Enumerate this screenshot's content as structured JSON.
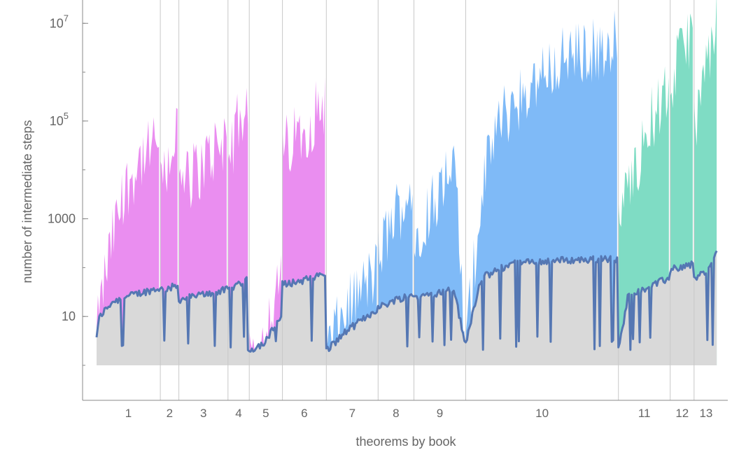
{
  "chart_data": {
    "type": "area",
    "title": "",
    "xlabel": "theorems by book",
    "ylabel": "number of intermediate steps",
    "yscale": "log",
    "ylim": [
      1,
      30000000
    ],
    "y_ticks": [
      {
        "value": 10,
        "label": "10",
        "sup": ""
      },
      {
        "value": 1000,
        "label": "1000",
        "sup": ""
      },
      {
        "value": 100000,
        "label": "10",
        "sup": "5"
      },
      {
        "value": 10000000,
        "label": "10",
        "sup": "7"
      }
    ],
    "grid": false,
    "legend": "none",
    "colors": {
      "books_1_6": "#ea8ef0",
      "books_7_10": "#7fbaf7",
      "books_11_13": "#7fdcc4",
      "median_line": "#5577b3",
      "base_fill": "#d9d9d9",
      "divider": "#c8c8c8"
    },
    "books": [
      {
        "label": "1",
        "count": 48,
        "color_group": "pink",
        "max_profile": [
          [
            0,
            4
          ],
          [
            0.12,
            60
          ],
          [
            0.3,
            800
          ],
          [
            0.5,
            6000
          ],
          [
            0.7,
            20000
          ],
          [
            0.85,
            25000
          ],
          [
            1,
            60000
          ]
        ],
        "median_profile": [
          [
            0,
            4
          ],
          [
            0.05,
            10
          ],
          [
            0.25,
            20
          ],
          [
            0.6,
            28
          ],
          [
            1,
            38
          ]
        ]
      },
      {
        "label": "2",
        "count": 14,
        "color_group": "pink",
        "max_profile": [
          [
            0,
            4000
          ],
          [
            0.5,
            20000
          ],
          [
            1,
            100000
          ]
        ],
        "median_profile": [
          [
            0,
            35
          ],
          [
            1,
            42
          ]
        ]
      },
      {
        "label": "3",
        "count": 37,
        "color_group": "pink",
        "max_profile": [
          [
            0,
            5000
          ],
          [
            0.5,
            15000
          ],
          [
            1,
            60000
          ]
        ],
        "median_profile": [
          [
            0,
            22
          ],
          [
            0.5,
            28
          ],
          [
            1,
            35
          ]
        ]
      },
      {
        "label": "4",
        "count": 16,
        "color_group": "pink",
        "max_profile": [
          [
            0,
            20000
          ],
          [
            0.5,
            100000
          ],
          [
            1,
            250000
          ]
        ],
        "median_profile": [
          [
            0,
            35
          ],
          [
            1,
            60
          ]
        ]
      },
      {
        "label": "5",
        "count": 25,
        "color_group": "pink",
        "max_profile": [
          [
            0,
            2
          ],
          [
            0.4,
            4
          ],
          [
            0.7,
            15
          ],
          [
            1,
            80
          ]
        ],
        "median_profile": [
          [
            0,
            2
          ],
          [
            0.5,
            3
          ],
          [
            1,
            10
          ]
        ]
      },
      {
        "label": "6",
        "count": 33,
        "color_group": "pink",
        "max_profile": [
          [
            0,
            30000
          ],
          [
            0.5,
            80000
          ],
          [
            1,
            300000
          ]
        ],
        "median_profile": [
          [
            0,
            45
          ],
          [
            0.5,
            55
          ],
          [
            1,
            75
          ]
        ]
      },
      {
        "label": "7",
        "count": 39,
        "color_group": "blue",
        "max_profile": [
          [
            0,
            2
          ],
          [
            0.3,
            10
          ],
          [
            0.6,
            30
          ],
          [
            1,
            100
          ]
        ],
        "median_profile": [
          [
            0,
            2
          ],
          [
            0.4,
            5
          ],
          [
            1,
            14
          ]
        ]
      },
      {
        "label": "8",
        "count": 27,
        "color_group": "blue",
        "max_profile": [
          [
            0,
            200
          ],
          [
            0.5,
            1500
          ],
          [
            1,
            4000
          ]
        ],
        "median_profile": [
          [
            0,
            15
          ],
          [
            0.5,
            22
          ],
          [
            1,
            28
          ]
        ]
      },
      {
        "label": "9",
        "count": 39,
        "color_group": "blue",
        "max_profile": [
          [
            0,
            500
          ],
          [
            0.6,
            8000
          ],
          [
            0.85,
            8000
          ],
          [
            1,
            2
          ]
        ],
        "median_profile": [
          [
            0,
            25
          ],
          [
            0.8,
            35
          ],
          [
            1,
            3
          ]
        ]
      },
      {
        "label": "10",
        "count": 115,
        "color_group": "blue",
        "max_profile": [
          [
            0,
            3
          ],
          [
            0.1,
            3000
          ],
          [
            0.2,
            100000
          ],
          [
            0.4,
            500000
          ],
          [
            0.6,
            2000000
          ],
          [
            0.8,
            3000000
          ],
          [
            1,
            5000000
          ]
        ],
        "median_profile": [
          [
            0,
            3
          ],
          [
            0.1,
            60
          ],
          [
            0.3,
            120
          ],
          [
            0.6,
            140
          ],
          [
            1,
            150
          ]
        ]
      },
      {
        "label": "11",
        "count": 39,
        "color_group": "teal",
        "max_profile": [
          [
            0,
            1000
          ],
          [
            0.3,
            10000
          ],
          [
            0.6,
            100000
          ],
          [
            1,
            500000
          ]
        ],
        "median_profile": [
          [
            0,
            2
          ],
          [
            0.2,
            30
          ],
          [
            0.6,
            40
          ],
          [
            1,
            60
          ]
        ]
      },
      {
        "label": "12",
        "count": 18,
        "color_group": "teal",
        "max_profile": [
          [
            0,
            500000
          ],
          [
            0.5,
            3000000
          ],
          [
            1,
            10000000
          ]
        ],
        "median_profile": [
          [
            0,
            90
          ],
          [
            1,
            120
          ]
        ]
      },
      {
        "label": "13",
        "count": 18,
        "color_group": "teal",
        "max_profile": [
          [
            0,
            100000
          ],
          [
            0.5,
            1000000
          ],
          [
            1,
            20000000
          ]
        ],
        "median_profile": [
          [
            0,
            60
          ],
          [
            0.5,
            80
          ],
          [
            1,
            200
          ]
        ]
      }
    ]
  }
}
